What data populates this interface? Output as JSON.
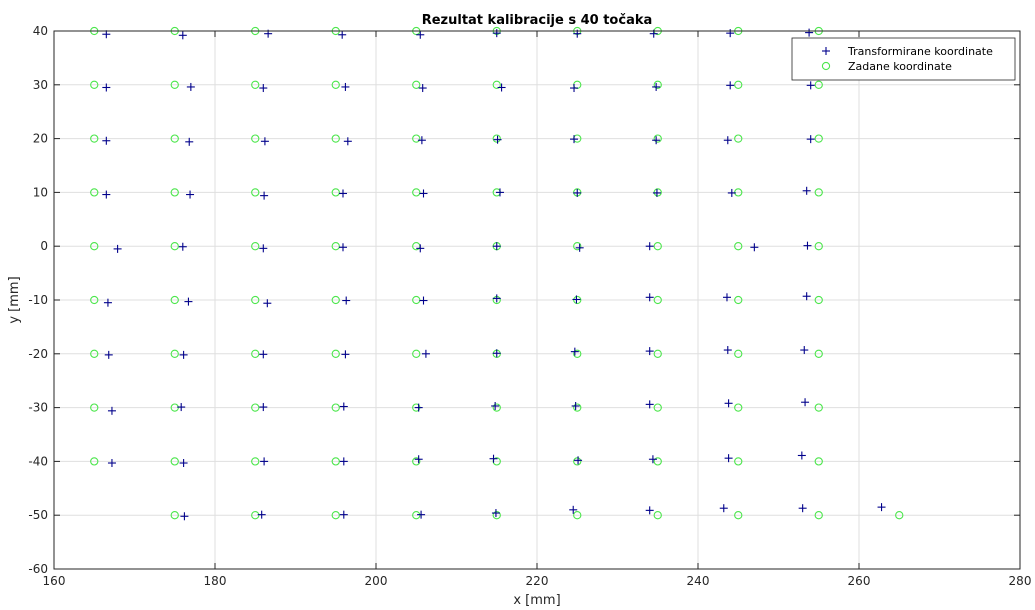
{
  "chart_data": {
    "type": "scatter",
    "title": "Rezultat kalibracije s 40 točaka",
    "xlabel": "x [mm]",
    "ylabel": "y [mm]",
    "xlim": [
      160,
      280
    ],
    "ylim": [
      -60,
      40
    ],
    "xticks": [
      160,
      180,
      200,
      220,
      240,
      260,
      280
    ],
    "yticks": [
      -60,
      -50,
      -40,
      -30,
      -20,
      -10,
      0,
      10,
      20,
      30,
      40
    ],
    "xtick_labels": [
      "160",
      "180",
      "200",
      "220",
      "240",
      "260",
      "280"
    ],
    "ytick_labels": [
      "-60",
      "-50",
      "-40",
      "-30",
      "-20",
      "-10",
      "0",
      "10",
      "20",
      "30",
      "40"
    ],
    "grid": true,
    "legend_position": "top-right",
    "series": [
      {
        "name": "Transformirane koordinate",
        "marker": "plus",
        "color": "#00008B",
        "points": [
          [
            166.5,
            39.4
          ],
          [
            176.0,
            39.2
          ],
          [
            186.6,
            39.5
          ],
          [
            195.8,
            39.3
          ],
          [
            205.5,
            39.3
          ],
          [
            215.0,
            39.6
          ],
          [
            225.0,
            39.5
          ],
          [
            234.5,
            39.5
          ],
          [
            244.0,
            39.6
          ],
          [
            253.8,
            39.7
          ],
          [
            166.5,
            29.5
          ],
          [
            177.0,
            29.6
          ],
          [
            186.0,
            29.4
          ],
          [
            196.2,
            29.6
          ],
          [
            205.8,
            29.4
          ],
          [
            215.6,
            29.5
          ],
          [
            224.6,
            29.4
          ],
          [
            234.8,
            29.6
          ],
          [
            244.0,
            29.9
          ],
          [
            254.0,
            29.9
          ],
          [
            166.5,
            19.6
          ],
          [
            176.8,
            19.4
          ],
          [
            186.2,
            19.5
          ],
          [
            196.5,
            19.5
          ],
          [
            205.7,
            19.7
          ],
          [
            215.1,
            19.8
          ],
          [
            224.6,
            19.9
          ],
          [
            234.8,
            19.7
          ],
          [
            243.7,
            19.7
          ],
          [
            254.0,
            19.9
          ],
          [
            166.5,
            9.6
          ],
          [
            176.9,
            9.6
          ],
          [
            186.1,
            9.4
          ],
          [
            195.9,
            9.8
          ],
          [
            205.9,
            9.8
          ],
          [
            215.4,
            10.0
          ],
          [
            225.0,
            9.9
          ],
          [
            234.9,
            9.9
          ],
          [
            244.2,
            9.9
          ],
          [
            253.5,
            10.3
          ],
          [
            167.9,
            -0.5
          ],
          [
            176.0,
            -0.1
          ],
          [
            186.0,
            -0.4
          ],
          [
            195.9,
            -0.2
          ],
          [
            205.5,
            -0.4
          ],
          [
            215.0,
            0.0
          ],
          [
            225.3,
            -0.3
          ],
          [
            234.0,
            0.0
          ],
          [
            247.0,
            -0.2
          ],
          [
            253.6,
            0.1
          ],
          [
            166.7,
            -10.5
          ],
          [
            176.7,
            -10.3
          ],
          [
            186.5,
            -10.6
          ],
          [
            196.3,
            -10.1
          ],
          [
            205.9,
            -10.1
          ],
          [
            215.0,
            -9.7
          ],
          [
            224.9,
            -9.9
          ],
          [
            234.0,
            -9.5
          ],
          [
            243.6,
            -9.5
          ],
          [
            253.5,
            -9.3
          ],
          [
            166.8,
            -20.2
          ],
          [
            176.1,
            -20.2
          ],
          [
            186.0,
            -20.1
          ],
          [
            196.2,
            -20.1
          ],
          [
            206.2,
            -20.0
          ],
          [
            215.0,
            -19.9
          ],
          [
            224.7,
            -19.6
          ],
          [
            234.0,
            -19.5
          ],
          [
            243.7,
            -19.3
          ],
          [
            253.2,
            -19.3
          ],
          [
            167.2,
            -30.6
          ],
          [
            175.8,
            -29.9
          ],
          [
            186.0,
            -29.9
          ],
          [
            196.0,
            -29.8
          ],
          [
            205.3,
            -30.0
          ],
          [
            214.8,
            -29.7
          ],
          [
            224.8,
            -29.7
          ],
          [
            234.0,
            -29.4
          ],
          [
            243.8,
            -29.2
          ],
          [
            253.3,
            -29.0
          ],
          [
            167.2,
            -40.3
          ],
          [
            176.1,
            -40.3
          ],
          [
            186.1,
            -40.0
          ],
          [
            196.0,
            -40.0
          ],
          [
            205.3,
            -39.6
          ],
          [
            214.6,
            -39.5
          ],
          [
            225.1,
            -39.8
          ],
          [
            234.4,
            -39.6
          ],
          [
            243.8,
            -39.4
          ],
          [
            252.9,
            -38.9
          ],
          [
            176.2,
            -50.2
          ],
          [
            185.8,
            -49.9
          ],
          [
            196.0,
            -49.9
          ],
          [
            205.6,
            -49.9
          ],
          [
            214.9,
            -49.6
          ],
          [
            224.5,
            -49.0
          ],
          [
            234.0,
            -49.1
          ],
          [
            243.2,
            -48.7
          ],
          [
            253.0,
            -48.7
          ],
          [
            262.8,
            -48.5
          ]
        ]
      },
      {
        "name": "Zadane koordinate",
        "marker": "circle",
        "color": "#4CE64C",
        "points": [
          [
            165,
            40
          ],
          [
            175,
            40
          ],
          [
            185,
            40
          ],
          [
            195,
            40
          ],
          [
            205,
            40
          ],
          [
            215,
            40
          ],
          [
            225,
            40
          ],
          [
            235,
            40
          ],
          [
            245,
            40
          ],
          [
            255,
            40
          ],
          [
            165,
            30
          ],
          [
            175,
            30
          ],
          [
            185,
            30
          ],
          [
            195,
            30
          ],
          [
            205,
            30
          ],
          [
            215,
            30
          ],
          [
            225,
            30
          ],
          [
            235,
            30
          ],
          [
            245,
            30
          ],
          [
            255,
            30
          ],
          [
            165,
            20
          ],
          [
            175,
            20
          ],
          [
            185,
            20
          ],
          [
            195,
            20
          ],
          [
            205,
            20
          ],
          [
            215,
            20
          ],
          [
            225,
            20
          ],
          [
            235,
            20
          ],
          [
            245,
            20
          ],
          [
            255,
            20
          ],
          [
            165,
            10
          ],
          [
            175,
            10
          ],
          [
            185,
            10
          ],
          [
            195,
            10
          ],
          [
            205,
            10
          ],
          [
            215,
            10
          ],
          [
            225,
            10
          ],
          [
            235,
            10
          ],
          [
            245,
            10
          ],
          [
            255,
            10
          ],
          [
            165,
            0
          ],
          [
            175,
            0
          ],
          [
            185,
            0
          ],
          [
            195,
            0
          ],
          [
            205,
            0
          ],
          [
            215,
            0
          ],
          [
            225,
            0
          ],
          [
            235,
            0
          ],
          [
            245,
            0
          ],
          [
            255,
            0
          ],
          [
            165,
            -10
          ],
          [
            175,
            -10
          ],
          [
            185,
            -10
          ],
          [
            195,
            -10
          ],
          [
            205,
            -10
          ],
          [
            215,
            -10
          ],
          [
            225,
            -10
          ],
          [
            235,
            -10
          ],
          [
            245,
            -10
          ],
          [
            255,
            -10
          ],
          [
            165,
            -20
          ],
          [
            175,
            -20
          ],
          [
            185,
            -20
          ],
          [
            195,
            -20
          ],
          [
            205,
            -20
          ],
          [
            215,
            -20
          ],
          [
            225,
            -20
          ],
          [
            235,
            -20
          ],
          [
            245,
            -20
          ],
          [
            255,
            -20
          ],
          [
            165,
            -30
          ],
          [
            175,
            -30
          ],
          [
            185,
            -30
          ],
          [
            195,
            -30
          ],
          [
            205,
            -30
          ],
          [
            215,
            -30
          ],
          [
            225,
            -30
          ],
          [
            235,
            -30
          ],
          [
            245,
            -30
          ],
          [
            255,
            -30
          ],
          [
            165,
            -40
          ],
          [
            175,
            -40
          ],
          [
            185,
            -40
          ],
          [
            195,
            -40
          ],
          [
            205,
            -40
          ],
          [
            215,
            -40
          ],
          [
            225,
            -40
          ],
          [
            235,
            -40
          ],
          [
            245,
            -40
          ],
          [
            255,
            -40
          ],
          [
            175,
            -50
          ],
          [
            185,
            -50
          ],
          [
            195,
            -50
          ],
          [
            205,
            -50
          ],
          [
            215,
            -50
          ],
          [
            225,
            -50
          ],
          [
            235,
            -50
          ],
          [
            245,
            -50
          ],
          [
            255,
            -50
          ],
          [
            265,
            -50
          ]
        ]
      }
    ]
  }
}
